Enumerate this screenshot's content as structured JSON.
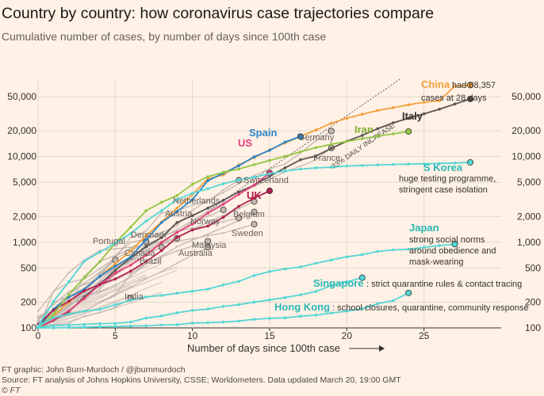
{
  "chart_data": {
    "type": "line",
    "title": "Country by country: how coronavirus case trajectories compare",
    "subtitle": "Cumulative number of cases, by number of days since 100th case",
    "xlabel": "Number of days since 100th case",
    "ylabel": "",
    "y_scale": "log",
    "xlim": [
      0,
      30
    ],
    "ylim": [
      100,
      80000
    ],
    "x_ticks": [
      0,
      5,
      10,
      15,
      20,
      25
    ],
    "y_ticks": [
      100,
      200,
      500,
      1000,
      2000,
      5000,
      10000,
      20000,
      50000
    ],
    "y_tick_labels": [
      "100",
      "200",
      "500",
      "1,000",
      "2,000",
      "5,000",
      "10,000",
      "20,000",
      "50,000"
    ],
    "reference_line": {
      "label": "33% DAILY INCREASE",
      "daily_growth": 1.33,
      "start": 100
    },
    "colors": {
      "background": "#fff1e5",
      "china": "#f2a03a",
      "italy": "#595351",
      "spain": "#2a82c9",
      "us": "#e6417f",
      "uk": "#b0204f",
      "iran": "#94c642",
      "teal": "#53d6d6",
      "grey": "#c3b8b1",
      "text_grey": "#66605c"
    },
    "series": [
      {
        "name": "China",
        "color": "china",
        "values": [
          100,
          138,
          200,
          282,
          400,
          560,
          790,
          1200,
          1720,
          2500,
          3600,
          5500,
          6100,
          8000,
          9700,
          12000,
          14400,
          17200,
          20400,
          24500,
          28000,
          31200,
          34500,
          37200,
          40200,
          43000,
          45000,
          66500,
          68357
        ]
      },
      {
        "name": "Italy",
        "color": "italy",
        "values": [
          100,
          122,
          155,
          230,
          323,
          470,
          655,
          890,
          1130,
          1700,
          2040,
          2500,
          3090,
          3860,
          4640,
          5880,
          7380,
          9170,
          10150,
          12460,
          15110,
          17660,
          21160,
          24750,
          27980,
          31500,
          35710,
          41040,
          47020
        ]
      },
      {
        "name": "Spain",
        "color": "spain",
        "values": [
          100,
          165,
          228,
          282,
          401,
          525,
          674,
          1073,
          1695,
          2277,
          3146,
          5232,
          6391,
          7798,
          9942,
          11826,
          14769,
          17147
        ]
      },
      {
        "name": "US",
        "color": "us",
        "values": [
          100,
          124,
          158,
          221,
          319,
          435,
          541,
          704,
          994,
          1301,
          1630,
          2183,
          2770,
          3613,
          4661,
          6427
        ]
      },
      {
        "name": "UK",
        "color": "uk",
        "values": [
          110,
          160,
          206,
          271,
          321,
          373,
          460,
          594,
          798,
          1140,
          1391,
          1543,
          1950,
          2626,
          3269,
          3983
        ]
      },
      {
        "name": "Iran",
        "color": "iran",
        "values": [
          100,
          145,
          245,
          388,
          593,
          978,
          1501,
          2336,
          2922,
          3513,
          4747,
          5823,
          6566,
          7161,
          8042,
          9000,
          10075,
          11364,
          12729,
          13938,
          14991,
          16169,
          17361,
          18407,
          19644
        ]
      },
      {
        "name": "S Korea",
        "color": "teal",
        "values": [
          104,
          204,
          346,
          602,
          763,
          977,
          1261,
          1766,
          2337,
          3150,
          3736,
          4212,
          4812,
          5328,
          5766,
          6284,
          6767,
          7134,
          7382,
          7513,
          7755,
          7869,
          7979,
          8086,
          8162,
          8236,
          8320,
          8413,
          8565
        ]
      },
      {
        "name": "Japan",
        "color": "teal",
        "values": [
          105,
          132,
          144,
          157,
          164,
          186,
          210,
          230,
          239,
          254,
          268,
          284,
          317,
          349,
          408,
          455,
          488,
          514,
          568,
          620,
          675,
          716,
          780,
          814,
          829,
          873,
          914,
          950
        ]
      },
      {
        "name": "Singapore",
        "color": "teal",
        "values": [
          102,
          106,
          108,
          110,
          112,
          113,
          117,
          130,
          138,
          150,
          160,
          166,
          178,
          187,
          200,
          212,
          226,
          243,
          266,
          313,
          345,
          385
        ]
      },
      {
        "name": "Hong Kong",
        "color": "teal",
        "values": [
          100,
          100,
          101,
          102,
          103,
          104,
          105,
          106,
          108,
          109,
          114,
          115,
          117,
          120,
          126,
          129,
          131,
          137,
          141,
          149,
          157,
          167,
          192,
          208,
          256
        ]
      },
      {
        "name": "Germany",
        "color": "grey",
        "values": [
          130,
          159,
          196,
          262,
          400,
          684,
          847,
          1112,
          1296,
          1567,
          2369,
          3062,
          3795,
          4838,
          6012,
          7156,
          8198,
          10999,
          15320,
          19848
        ]
      },
      {
        "name": "France",
        "color": "grey",
        "values": [
          100,
          130,
          191,
          212,
          285,
          423,
          613,
          949,
          1126,
          1412,
          1784,
          2281,
          2876,
          3661,
          4500,
          5423,
          6633,
          7730,
          9134,
          12612
        ]
      },
      {
        "name": "Switzerland",
        "color": "grey",
        "values": [
          100,
          268,
          337,
          374,
          491,
          652,
          1139,
          1359,
          2200,
          2330,
          2700,
          3028,
          4075,
          5294
        ]
      },
      {
        "name": "Netherlands",
        "color": "grey",
        "values": [
          128,
          188,
          265,
          321,
          382,
          503,
          614,
          804,
          959,
          1135,
          1413,
          1705,
          2051,
          2460,
          2994
        ]
      },
      {
        "name": "Austria",
        "color": "grey",
        "values": [
          102,
          131,
          182,
          246,
          302,
          504,
          655,
          860,
          1018,
          1332,
          1646,
          2013,
          2388
        ]
      },
      {
        "name": "Belgium",
        "color": "grey",
        "values": [
          109,
          169,
          200,
          239,
          267,
          314,
          399,
          559,
          689,
          886,
          1058,
          1243,
          1486,
          1795,
          2257
        ]
      },
      {
        "name": "Norway",
        "color": "grey",
        "values": [
          113,
          147,
          176,
          400,
          598,
          702,
          996,
          1090,
          1221,
          1333,
          1463,
          1550,
          1746,
          1914
        ]
      },
      {
        "name": "Sweden",
        "color": "grey",
        "values": [
          137,
          161,
          203,
          248,
          355,
          500,
          599,
          814,
          961,
          1022,
          1103,
          1190,
          1279,
          1439,
          1623
        ]
      },
      {
        "name": "Denmark",
        "color": "grey",
        "values": [
          156,
          264,
          444,
          617,
          804,
          836,
          875,
          933,
          1024,
          1115
        ]
      },
      {
        "name": "Portugal",
        "color": "grey",
        "values": [
          112,
          169,
          245,
          331,
          448,
          642,
          785,
          1020
        ]
      },
      {
        "name": "Canada",
        "color": "grey",
        "values": [
          103,
          138,
          176,
          252,
          341,
          441,
          598,
          727,
          873
        ]
      },
      {
        "name": "Malaysia",
        "color": "grey",
        "values": [
          117,
          129,
          149,
          158,
          197,
          238,
          428,
          566,
          673,
          790,
          900,
          1030
        ]
      },
      {
        "name": "Australia",
        "color": "grey",
        "values": [
          112,
          127,
          140,
          156,
          197,
          249,
          298,
          375,
          454,
          568,
          709,
          874
        ]
      },
      {
        "name": "Brazil",
        "color": "grey",
        "values": [
          121,
          200,
          234,
          291,
          428,
          621
        ]
      },
      {
        "name": "India",
        "color": "grey",
        "values": [
          100,
          107,
          114,
          137,
          151,
          173,
          223
        ]
      }
    ],
    "background_lines": [
      [
        110,
        135,
        170,
        210,
        255,
        320,
        380,
        470,
        560
      ],
      [
        100,
        125,
        150,
        180,
        220,
        275,
        330,
        400
      ],
      [
        120,
        140,
        160,
        190,
        230,
        270,
        310
      ],
      [
        105,
        118,
        130,
        150,
        175,
        205,
        240,
        290,
        340
      ],
      [
        115,
        150,
        190,
        230,
        260,
        300,
        350,
        420
      ],
      [
        100,
        112,
        128,
        145,
        170,
        198,
        230
      ],
      [
        108,
        130,
        165,
        200,
        240,
        285,
        330,
        380,
        450,
        510
      ],
      [
        102,
        110,
        120,
        135,
        150,
        170,
        195,
        225,
        260
      ],
      [
        125,
        160,
        210,
        260,
        310,
        360,
        440,
        520,
        610
      ],
      [
        100,
        118,
        140,
        170,
        205,
        240,
        290,
        340,
        400,
        470
      ]
    ],
    "labels": {
      "china": "China",
      "china_note_1": "had 68,357",
      "china_note_2": "cases at 28 days",
      "italy": "Italy",
      "spain": "Spain",
      "us": "US",
      "uk": "UK",
      "iran": "Iran",
      "skorea": "S Korea",
      "skorea_note_1": "huge testing programme,",
      "skorea_note_2": "stringent case isolation",
      "japan": "Japan",
      "japan_note_1": "strong social norms",
      "japan_note_2": "around obedience and",
      "japan_note_3": "mask-wearing",
      "singapore": "Singapore",
      "singapore_note": ": strict quarantine rules & contact tracing",
      "hongkong": "Hong Kong",
      "hongkong_note": ": school closures, quarantine, community response",
      "germany": "Germany",
      "france": "France",
      "switzerland": "Switzerland",
      "netherlands": "Netherlands",
      "austria": "Austria",
      "belgium": "Belgium",
      "norway": "Norway",
      "sweden": "Sweden",
      "denmark": "Denmark",
      "portugal": "Portugal",
      "canada": "Canada",
      "malaysia": "Malaysia",
      "australia": "Australia",
      "brazil": "Brazil",
      "india": "India"
    }
  },
  "footer": {
    "credit": "FT graphic: John Burn-Murdoch / @jburnmurdoch",
    "source": "Source: FT analysis of Johns Hopkins University, CSSE; Worldometers. Data updated March 20, 19:00 GMT",
    "copyright": "© FT"
  }
}
